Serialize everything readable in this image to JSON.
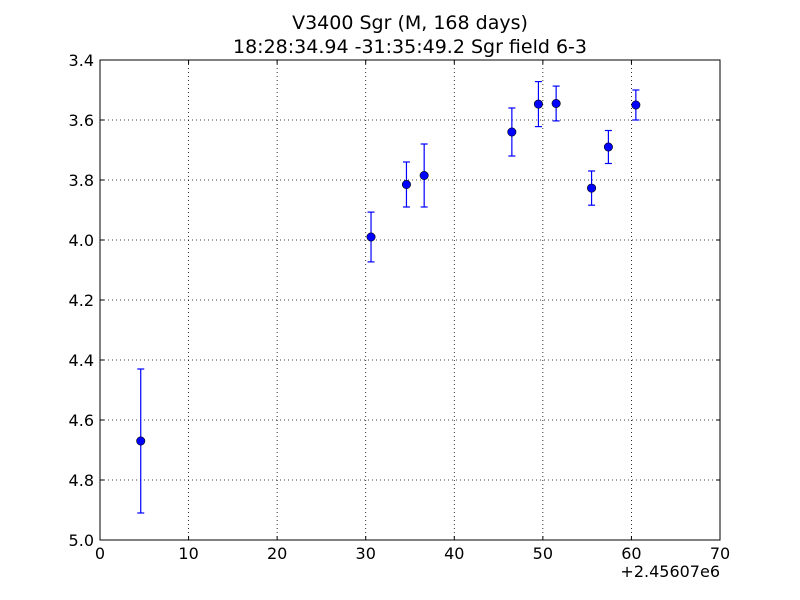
{
  "chart_data": {
    "type": "scatter",
    "title_line1": "V3400 Sgr  (M, 168 days)",
    "title_line2": "18:28:34.94 -31:35:49.2 Sgr field 6-3",
    "xlabel": "",
    "ylabel": "",
    "x_offset_label": "+2.45607e6",
    "xlim": [
      0,
      70
    ],
    "ylim": [
      5.0,
      3.4
    ],
    "y_inverted": true,
    "grid": true,
    "x_ticks": [
      0,
      10,
      20,
      30,
      40,
      50,
      60,
      70
    ],
    "x_tick_labels": [
      "0",
      "10",
      "20",
      "30",
      "40",
      "50",
      "60",
      "70"
    ],
    "y_ticks": [
      3.4,
      3.6,
      3.8,
      4.0,
      4.2,
      4.4,
      4.6,
      4.8,
      5.0
    ],
    "y_tick_labels": [
      "3.4",
      "3.6",
      "3.8",
      "4.0",
      "4.2",
      "4.4",
      "4.6",
      "4.8",
      "5.0"
    ],
    "marker_color": "#0000ff",
    "points": [
      {
        "x": 4.6,
        "y": 4.67,
        "err": 0.24
      },
      {
        "x": 30.6,
        "y": 3.99,
        "err": 0.083
      },
      {
        "x": 34.6,
        "y": 3.815,
        "err": 0.075
      },
      {
        "x": 36.6,
        "y": 3.785,
        "err": 0.105
      },
      {
        "x": 46.5,
        "y": 3.64,
        "err": 0.08
      },
      {
        "x": 49.5,
        "y": 3.547,
        "err": 0.075
      },
      {
        "x": 51.5,
        "y": 3.545,
        "err": 0.058
      },
      {
        "x": 55.5,
        "y": 3.827,
        "err": 0.057
      },
      {
        "x": 57.4,
        "y": 3.69,
        "err": 0.055
      },
      {
        "x": 60.5,
        "y": 3.55,
        "err": 0.05
      }
    ]
  }
}
